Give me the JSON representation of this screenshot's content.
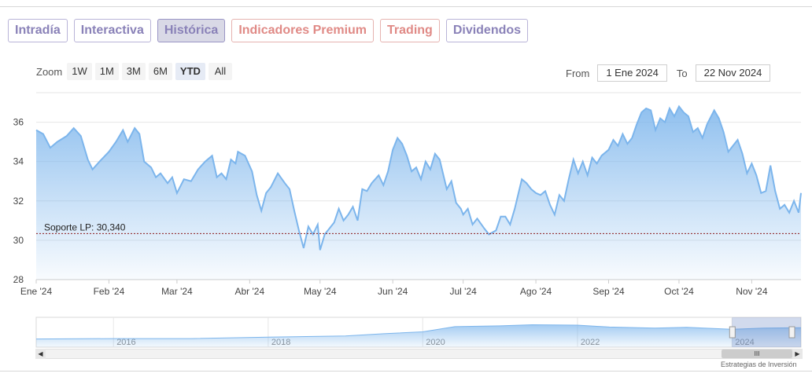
{
  "tabs": [
    {
      "label": "Intradía",
      "state": "normal"
    },
    {
      "label": "Interactiva",
      "state": "normal"
    },
    {
      "label": "Histórica",
      "state": "active"
    },
    {
      "label": "Indicadores Premium",
      "state": "premium"
    },
    {
      "label": "Trading",
      "state": "premium"
    },
    {
      "label": "Dividendos",
      "state": "normal"
    }
  ],
  "zoom": {
    "label": "Zoom",
    "buttons": [
      "1W",
      "1M",
      "3M",
      "6M",
      "YTD",
      "All"
    ],
    "selected": "YTD"
  },
  "range": {
    "from_label": "From",
    "from_value": "1 Ene 2024",
    "to_label": "To",
    "to_value": "22 Nov 2024"
  },
  "navigator": {
    "year_labels": [
      "2016",
      "2018",
      "2020",
      "2022",
      "2024"
    ],
    "thumb_glyph": "III",
    "credit": "Estrategias de Inversión"
  },
  "colors": {
    "line": "#7cb5ec",
    "support": "#8b1a1a",
    "tab_text": "#8a82b8",
    "tab_premium_text": "#e08a86"
  },
  "chart_data": {
    "type": "area",
    "x_ticks": [
      "Ene '24",
      "Feb '24",
      "Mar '24",
      "Abr '24",
      "May '24",
      "Jun '24",
      "Jul '24",
      "Ago '24",
      "Sep '24",
      "Oct '24",
      "Nov '24"
    ],
    "y_ticks": [
      28,
      30,
      32,
      34,
      36
    ],
    "ylim": [
      28,
      37.5
    ],
    "xlim": [
      "2024-01-01",
      "2024-11-22"
    ],
    "grid": true,
    "support_line": {
      "label": "Soporte LP: 30,340",
      "value": 30.34
    },
    "series": [
      {
        "points": [
          [
            "2024-01-01",
            35.6
          ],
          [
            "2024-01-04",
            35.4
          ],
          [
            "2024-01-07",
            34.7
          ],
          [
            "2024-01-10",
            35.0
          ],
          [
            "2024-01-14",
            35.3
          ],
          [
            "2024-01-17",
            35.7
          ],
          [
            "2024-01-20",
            35.3
          ],
          [
            "2024-01-23",
            34.1
          ],
          [
            "2024-01-25",
            33.6
          ],
          [
            "2024-01-28",
            34.0
          ],
          [
            "2024-02-01",
            34.5
          ],
          [
            "2024-02-04",
            35.0
          ],
          [
            "2024-02-07",
            35.6
          ],
          [
            "2024-02-09",
            35.0
          ],
          [
            "2024-02-12",
            35.7
          ],
          [
            "2024-02-14",
            35.4
          ],
          [
            "2024-02-16",
            34.0
          ],
          [
            "2024-02-19",
            33.7
          ],
          [
            "2024-02-21",
            33.2
          ],
          [
            "2024-02-23",
            33.4
          ],
          [
            "2024-02-26",
            32.9
          ],
          [
            "2024-02-28",
            33.2
          ],
          [
            "2024-03-01",
            32.4
          ],
          [
            "2024-03-04",
            33.1
          ],
          [
            "2024-03-07",
            33.0
          ],
          [
            "2024-03-10",
            33.6
          ],
          [
            "2024-03-13",
            34.0
          ],
          [
            "2024-03-16",
            34.3
          ],
          [
            "2024-03-18",
            33.2
          ],
          [
            "2024-03-20",
            33.4
          ],
          [
            "2024-03-22",
            33.1
          ],
          [
            "2024-03-24",
            34.1
          ],
          [
            "2024-03-26",
            33.9
          ],
          [
            "2024-03-27",
            34.5
          ],
          [
            "2024-03-30",
            34.3
          ],
          [
            "2024-04-02",
            33.5
          ],
          [
            "2024-04-04",
            32.3
          ],
          [
            "2024-04-06",
            31.5
          ],
          [
            "2024-04-08",
            32.4
          ],
          [
            "2024-04-10",
            32.7
          ],
          [
            "2024-04-13",
            33.4
          ],
          [
            "2024-04-16",
            32.9
          ],
          [
            "2024-04-18",
            32.6
          ],
          [
            "2024-04-20",
            31.5
          ],
          [
            "2024-04-22",
            30.5
          ],
          [
            "2024-04-24",
            29.6
          ],
          [
            "2024-04-26",
            30.7
          ],
          [
            "2024-04-28",
            30.3
          ],
          [
            "2024-04-30",
            30.8
          ],
          [
            "2024-05-01",
            29.5
          ],
          [
            "2024-05-03",
            30.3
          ],
          [
            "2024-05-05",
            30.6
          ],
          [
            "2024-05-07",
            30.9
          ],
          [
            "2024-05-09",
            31.6
          ],
          [
            "2024-05-11",
            31.0
          ],
          [
            "2024-05-13",
            31.3
          ],
          [
            "2024-05-15",
            31.7
          ],
          [
            "2024-05-17",
            31.0
          ],
          [
            "2024-05-19",
            32.6
          ],
          [
            "2024-05-21",
            32.5
          ],
          [
            "2024-05-23",
            32.9
          ],
          [
            "2024-05-26",
            33.3
          ],
          [
            "2024-05-28",
            32.8
          ],
          [
            "2024-05-30",
            33.5
          ],
          [
            "2024-06-01",
            34.6
          ],
          [
            "2024-06-03",
            35.2
          ],
          [
            "2024-06-05",
            34.9
          ],
          [
            "2024-06-07",
            34.3
          ],
          [
            "2024-06-09",
            33.5
          ],
          [
            "2024-06-11",
            33.7
          ],
          [
            "2024-06-13",
            33.1
          ],
          [
            "2024-06-15",
            34.0
          ],
          [
            "2024-06-17",
            33.6
          ],
          [
            "2024-06-19",
            34.4
          ],
          [
            "2024-06-21",
            34.1
          ],
          [
            "2024-06-24",
            32.6
          ],
          [
            "2024-06-26",
            33.0
          ],
          [
            "2024-06-28",
            31.9
          ],
          [
            "2024-06-30",
            31.6
          ],
          [
            "2024-07-01",
            31.3
          ],
          [
            "2024-07-03",
            31.6
          ],
          [
            "2024-07-05",
            30.8
          ],
          [
            "2024-07-07",
            31.1
          ],
          [
            "2024-07-10",
            30.6
          ],
          [
            "2024-07-12",
            30.3
          ],
          [
            "2024-07-15",
            30.5
          ],
          [
            "2024-07-17",
            31.2
          ],
          [
            "2024-07-19",
            31.2
          ],
          [
            "2024-07-21",
            30.8
          ],
          [
            "2024-07-23",
            31.6
          ],
          [
            "2024-07-26",
            33.1
          ],
          [
            "2024-07-28",
            32.9
          ],
          [
            "2024-07-30",
            32.6
          ],
          [
            "2024-08-01",
            32.4
          ],
          [
            "2024-08-03",
            32.3
          ],
          [
            "2024-08-05",
            32.5
          ],
          [
            "2024-08-07",
            31.8
          ],
          [
            "2024-08-09",
            31.3
          ],
          [
            "2024-08-11",
            32.3
          ],
          [
            "2024-08-13",
            32.0
          ],
          [
            "2024-08-15",
            33.1
          ],
          [
            "2024-08-17",
            34.1
          ],
          [
            "2024-08-19",
            33.4
          ],
          [
            "2024-08-21",
            34.0
          ],
          [
            "2024-08-23",
            33.3
          ],
          [
            "2024-08-25",
            34.2
          ],
          [
            "2024-08-27",
            33.9
          ],
          [
            "2024-08-29",
            34.3
          ],
          [
            "2024-09-01",
            34.6
          ],
          [
            "2024-09-03",
            35.1
          ],
          [
            "2024-09-05",
            34.8
          ],
          [
            "2024-09-07",
            35.4
          ],
          [
            "2024-09-09",
            34.9
          ],
          [
            "2024-09-11",
            35.2
          ],
          [
            "2024-09-13",
            35.9
          ],
          [
            "2024-09-15",
            36.5
          ],
          [
            "2024-09-17",
            36.7
          ],
          [
            "2024-09-19",
            36.6
          ],
          [
            "2024-09-21",
            35.6
          ],
          [
            "2024-09-23",
            36.2
          ],
          [
            "2024-09-25",
            36.0
          ],
          [
            "2024-09-27",
            36.7
          ],
          [
            "2024-09-29",
            36.3
          ],
          [
            "2024-10-01",
            36.8
          ],
          [
            "2024-10-03",
            36.5
          ],
          [
            "2024-10-05",
            36.3
          ],
          [
            "2024-10-07",
            35.5
          ],
          [
            "2024-10-09",
            35.7
          ],
          [
            "2024-10-11",
            35.2
          ],
          [
            "2024-10-13",
            35.9
          ],
          [
            "2024-10-16",
            36.6
          ],
          [
            "2024-10-18",
            36.2
          ],
          [
            "2024-10-20",
            35.5
          ],
          [
            "2024-10-22",
            34.5
          ],
          [
            "2024-10-24",
            34.8
          ],
          [
            "2024-10-26",
            35.1
          ],
          [
            "2024-10-28",
            34.4
          ],
          [
            "2024-10-30",
            33.4
          ],
          [
            "2024-11-01",
            33.9
          ],
          [
            "2024-11-03",
            33.3
          ],
          [
            "2024-11-05",
            32.4
          ],
          [
            "2024-11-07",
            32.5
          ],
          [
            "2024-11-09",
            33.8
          ],
          [
            "2024-11-11",
            32.5
          ],
          [
            "2024-11-13",
            31.6
          ],
          [
            "2024-11-15",
            31.8
          ],
          [
            "2024-11-17",
            31.4
          ],
          [
            "2024-11-19",
            32.0
          ],
          [
            "2024-11-21",
            31.4
          ],
          [
            "2024-11-22",
            32.4
          ]
        ]
      }
    ],
    "navigator_series": {
      "points": [
        [
          "2015-01-01",
          11.0
        ],
        [
          "2016-01-01",
          11.5
        ],
        [
          "2017-01-01",
          11.5
        ],
        [
          "2018-01-01",
          13.5
        ],
        [
          "2019-01-01",
          15.0
        ],
        [
          "2019-07-01",
          18.0
        ],
        [
          "2020-01-01",
          20.5
        ],
        [
          "2020-06-01",
          27.5
        ],
        [
          "2021-01-01",
          28.5
        ],
        [
          "2021-06-01",
          30.0
        ],
        [
          "2022-01-01",
          29.5
        ],
        [
          "2022-06-01",
          27.0
        ],
        [
          "2023-01-01",
          25.5
        ],
        [
          "2023-06-01",
          26.5
        ],
        [
          "2024-01-01",
          24.0
        ],
        [
          "2024-06-01",
          25.5
        ],
        [
          "2024-11-22",
          26.0
        ]
      ]
    }
  }
}
